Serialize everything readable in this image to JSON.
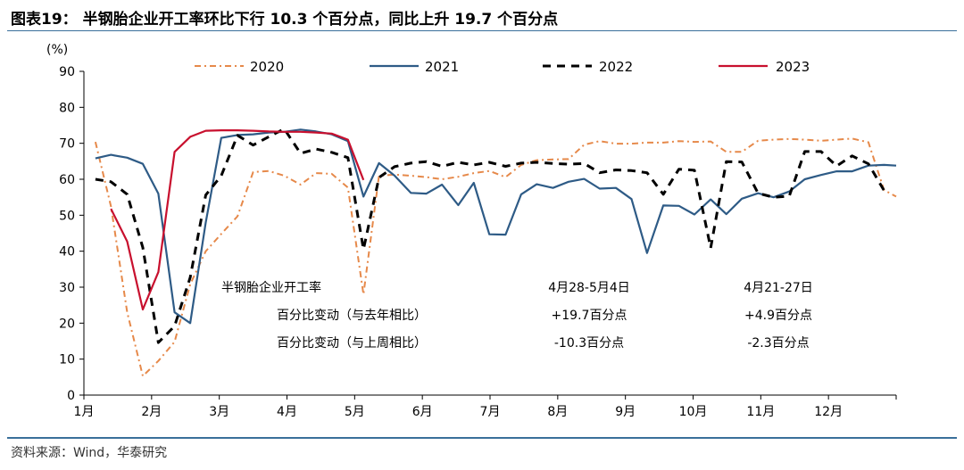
{
  "header": {
    "title": "图表19：  半钢胎企业开工率环比下行 10.3 个百分点，同比上升 19.7 个百分点"
  },
  "source": "资料来源：Wind，华泰研究",
  "colors": {
    "rule": "#3a6f9a",
    "s2020": "#e6894a",
    "s2021": "#2e5b86",
    "s2022": "#000000",
    "s2023": "#c8102e"
  },
  "chart_data": {
    "type": "line",
    "ylabel": "(%)",
    "ylim": [
      0,
      90
    ],
    "yticks": [
      0,
      10,
      20,
      30,
      40,
      50,
      60,
      70,
      80,
      90
    ],
    "xlim": [
      1,
      13
    ],
    "xticks": [
      {
        "value": 1,
        "label": "1月"
      },
      {
        "value": 2,
        "label": "2月"
      },
      {
        "value": 3,
        "label": "3月"
      },
      {
        "value": 4,
        "label": "4月"
      },
      {
        "value": 5,
        "label": "5月"
      },
      {
        "value": 6,
        "label": "6月"
      },
      {
        "value": 7,
        "label": "7月"
      },
      {
        "value": 8,
        "label": "8月"
      },
      {
        "value": 9,
        "label": "9月"
      },
      {
        "value": 10,
        "label": "10月"
      },
      {
        "value": 11,
        "label": "11月"
      },
      {
        "value": 12,
        "label": "12月"
      }
    ],
    "legend_position": "top",
    "series": [
      {
        "name": "2020",
        "style": "dashdot",
        "color": "#e6894a",
        "x": [
          1.17,
          1.4,
          1.64,
          1.87,
          2.1,
          2.34,
          2.57,
          2.8,
          3.03,
          3.27,
          3.5,
          3.73,
          3.96,
          4.2,
          4.43,
          4.66,
          4.9,
          5.13,
          5.36,
          5.59,
          5.83,
          6.06,
          6.29,
          6.53,
          6.76,
          6.99,
          7.23,
          7.46,
          7.69,
          7.93,
          8.16,
          8.39,
          8.62,
          8.86,
          9.09,
          9.32,
          9.56,
          9.79,
          10.02,
          10.26,
          10.49,
          10.72,
          10.96,
          11.19,
          11.42,
          11.65,
          11.89,
          12.12,
          12.35,
          12.59,
          12.82,
          13.0
        ],
        "y": [
          70.4,
          52.5,
          23,
          5.3,
          9.5,
          14.8,
          30.8,
          40,
          44.8,
          49.7,
          62,
          62.3,
          61,
          58.5,
          61.7,
          61.5,
          57.7,
          28,
          61,
          61.3,
          61,
          60.6,
          60,
          60.7,
          61.7,
          62.3,
          60.6,
          64,
          65.3,
          65.5,
          65.6,
          69.6,
          70.6,
          69.9,
          69.9,
          70.2,
          70.2,
          70.6,
          70.4,
          70.5,
          67.6,
          67.6,
          70.7,
          71,
          71.2,
          71,
          70.7,
          71,
          71.3,
          70.3,
          57,
          55.2
        ]
      },
      {
        "name": "2021",
        "style": "solid",
        "color": "#2e5b86",
        "x": [
          1.17,
          1.4,
          1.64,
          1.87,
          2.1,
          2.34,
          2.57,
          2.8,
          3.03,
          3.27,
          3.5,
          3.73,
          3.96,
          4.2,
          4.43,
          4.66,
          4.9,
          5.13,
          5.36,
          5.59,
          5.83,
          6.06,
          6.29,
          6.53,
          6.76,
          6.99,
          7.23,
          7.46,
          7.69,
          7.93,
          8.16,
          8.39,
          8.62,
          8.86,
          9.09,
          9.32,
          9.56,
          9.79,
          10.02,
          10.26,
          10.49,
          10.72,
          10.96,
          11.19,
          11.42,
          11.65,
          11.89,
          12.12,
          12.35,
          12.59,
          12.82,
          13.0
        ],
        "y": [
          65.8,
          66.8,
          66,
          64.3,
          56,
          23,
          20,
          48,
          71.5,
          72.3,
          72.5,
          73,
          73.2,
          73.8,
          73.3,
          72.5,
          70.6,
          55.2,
          64.5,
          61,
          56.2,
          56,
          58.5,
          52.8,
          59,
          44.7,
          44.6,
          55.8,
          58.6,
          57.6,
          59.3,
          60.1,
          57.4,
          57.6,
          54.5,
          39.5,
          52.7,
          52.6,
          50.2,
          54.4,
          50.3,
          54.6,
          56.1,
          55,
          56.6,
          60,
          61.2,
          62.2,
          62.2,
          63.8,
          64,
          63.8
        ]
      },
      {
        "name": "2022",
        "style": "dashed",
        "color": "#000000",
        "x": [
          1.17,
          1.4,
          1.64,
          1.87,
          2.1,
          2.34,
          2.57,
          2.8,
          3.03,
          3.27,
          3.5,
          3.73,
          3.96,
          4.2,
          4.43,
          4.66,
          4.9,
          5.13,
          5.36,
          5.59,
          5.83,
          6.06,
          6.29,
          6.53,
          6.76,
          6.99,
          7.23,
          7.46,
          7.69,
          7.93,
          8.16,
          8.39,
          8.62,
          8.86,
          9.09,
          9.32,
          9.56,
          9.79,
          10.02,
          10.26,
          10.49,
          10.72,
          10.96,
          11.19,
          11.42,
          11.65,
          11.89,
          12.12,
          12.35,
          12.59,
          12.82
        ],
        "y": [
          60,
          59.3,
          55.8,
          41,
          14.6,
          19.2,
          32.7,
          55.6,
          61,
          72.2,
          69.5,
          71.8,
          74,
          67.2,
          68.4,
          67.5,
          66,
          40.5,
          60.5,
          63.5,
          64.5,
          64.9,
          63.6,
          64.7,
          64,
          64.7,
          63.6,
          64.5,
          64.7,
          64.4,
          64.2,
          64.4,
          61.8,
          62.6,
          62.4,
          61.8,
          55.8,
          62.8,
          62.5,
          40.9,
          64.9,
          64.8,
          56.1,
          55,
          55.3,
          67.7,
          67.7,
          63.7,
          66.5,
          64.3,
          56.9
        ]
      },
      {
        "name": "2023",
        "style": "solid",
        "color": "#c8102e",
        "x": [
          1.4,
          1.64,
          1.87,
          2.1,
          2.34,
          2.57,
          2.8,
          3.03,
          3.27,
          3.5,
          3.73,
          3.96,
          4.2,
          4.43,
          4.66,
          4.9,
          5.13
        ],
        "y": [
          51.8,
          42.7,
          23.8,
          34.2,
          67.6,
          71.8,
          73.5,
          73.6,
          73.6,
          73.5,
          73.3,
          73.2,
          73.2,
          73,
          72.7,
          71,
          59.8
        ]
      }
    ],
    "annotation_table": {
      "rows": [
        [
          "半钢胎企业开工率",
          "4月28-5月4日",
          "4月21-27日"
        ],
        [
          "百分比变动（与去年相比）",
          "+19.7百分点",
          "+4.9百分点"
        ],
        [
          "百分比变动（与上周相比）",
          "-10.3百分点",
          "-2.3百分点"
        ]
      ]
    }
  }
}
